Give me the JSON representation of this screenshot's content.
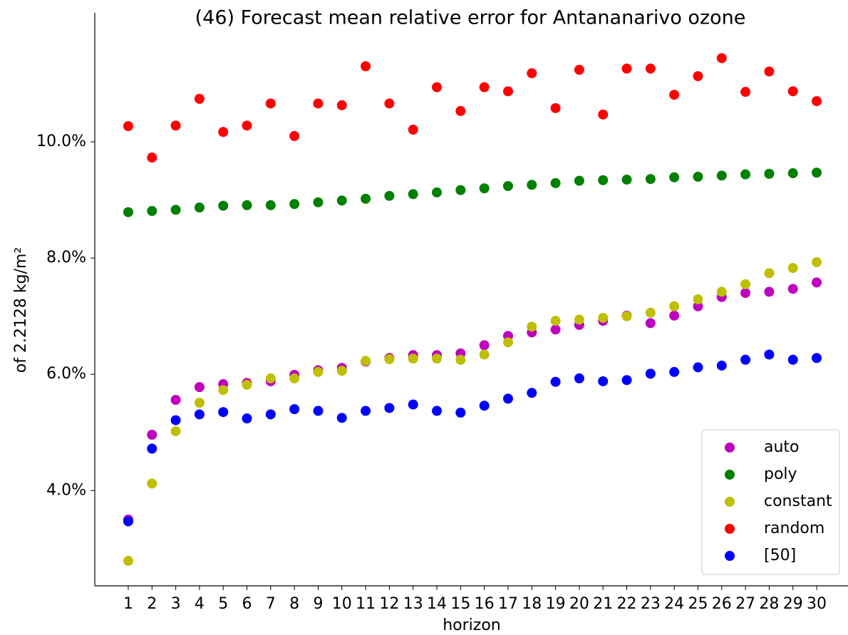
{
  "chart_data": {
    "type": "scatter",
    "title": "(46) Forecast mean relative error for Antananarivo ozone",
    "x_label": "horizon",
    "y_label": "of 2.2128 kg/m²",
    "x": [
      1,
      2,
      3,
      4,
      5,
      6,
      7,
      8,
      9,
      10,
      11,
      12,
      13,
      14,
      15,
      16,
      17,
      18,
      19,
      20,
      21,
      22,
      23,
      24,
      25,
      26,
      27,
      28,
      29,
      30
    ],
    "xlim": [
      -0.41,
      31.32
    ],
    "xticks": [
      1,
      2,
      3,
      4,
      5,
      6,
      7,
      8,
      9,
      10,
      11,
      12,
      13,
      14,
      15,
      16,
      17,
      18,
      19,
      20,
      21,
      22,
      23,
      24,
      25,
      26,
      27,
      28,
      29,
      30
    ],
    "ylim": [
      2.36,
      12.22
    ],
    "yticks": [
      {
        "value": 4,
        "label": "4.0%"
      },
      {
        "value": 6,
        "label": "6.0%"
      },
      {
        "value": 8,
        "label": "8.0%"
      },
      {
        "value": 10,
        "label": "10.0%"
      }
    ],
    "legend": "lower right",
    "series": [
      {
        "name": "auto",
        "color": "#bf00bf",
        "values": [
          3.5,
          4.96,
          5.56,
          5.78,
          5.83,
          5.85,
          5.88,
          5.99,
          6.07,
          6.11,
          6.22,
          6.28,
          6.33,
          6.33,
          6.36,
          6.5,
          6.66,
          6.72,
          6.77,
          6.85,
          6.92,
          7.01,
          6.88,
          7.01,
          7.17,
          7.33,
          7.4,
          7.42,
          7.47,
          7.58
        ]
      },
      {
        "name": "poly",
        "color": "#008000",
        "values": [
          8.79,
          8.81,
          8.83,
          8.87,
          8.9,
          8.91,
          8.91,
          8.93,
          8.96,
          8.99,
          9.02,
          9.07,
          9.1,
          9.13,
          9.17,
          9.2,
          9.24,
          9.26,
          9.29,
          9.33,
          9.34,
          9.35,
          9.36,
          9.39,
          9.4,
          9.42,
          9.44,
          9.45,
          9.46,
          9.47
        ]
      },
      {
        "name": "constant",
        "color": "#bfbf00",
        "values": [
          2.79,
          4.12,
          5.02,
          5.51,
          5.73,
          5.82,
          5.93,
          5.93,
          6.04,
          6.06,
          6.23,
          6.26,
          6.27,
          6.27,
          6.25,
          6.34,
          6.55,
          6.82,
          6.92,
          6.94,
          6.97,
          7.0,
          7.06,
          7.17,
          7.29,
          7.42,
          7.55,
          7.74,
          7.83,
          7.93
        ]
      },
      {
        "name": "random",
        "color": "#ff0000",
        "values": [
          10.27,
          9.73,
          10.28,
          10.74,
          10.17,
          10.28,
          10.66,
          10.1,
          10.66,
          10.63,
          11.3,
          10.66,
          10.21,
          10.94,
          10.53,
          10.94,
          10.87,
          11.18,
          10.58,
          11.24,
          10.47,
          11.26,
          11.26,
          10.81,
          11.13,
          11.44,
          10.86,
          11.21,
          10.87,
          10.7
        ]
      },
      {
        "name": "[50]",
        "color": "#0000ff",
        "values": [
          3.47,
          4.72,
          5.21,
          5.31,
          5.35,
          5.24,
          5.31,
          5.4,
          5.37,
          5.25,
          5.37,
          5.42,
          5.48,
          5.37,
          5.34,
          5.46,
          5.58,
          5.68,
          5.87,
          5.93,
          5.88,
          5.9,
          6.01,
          6.04,
          6.12,
          6.15,
          6.25,
          6.34,
          6.25,
          6.28
        ]
      }
    ]
  }
}
